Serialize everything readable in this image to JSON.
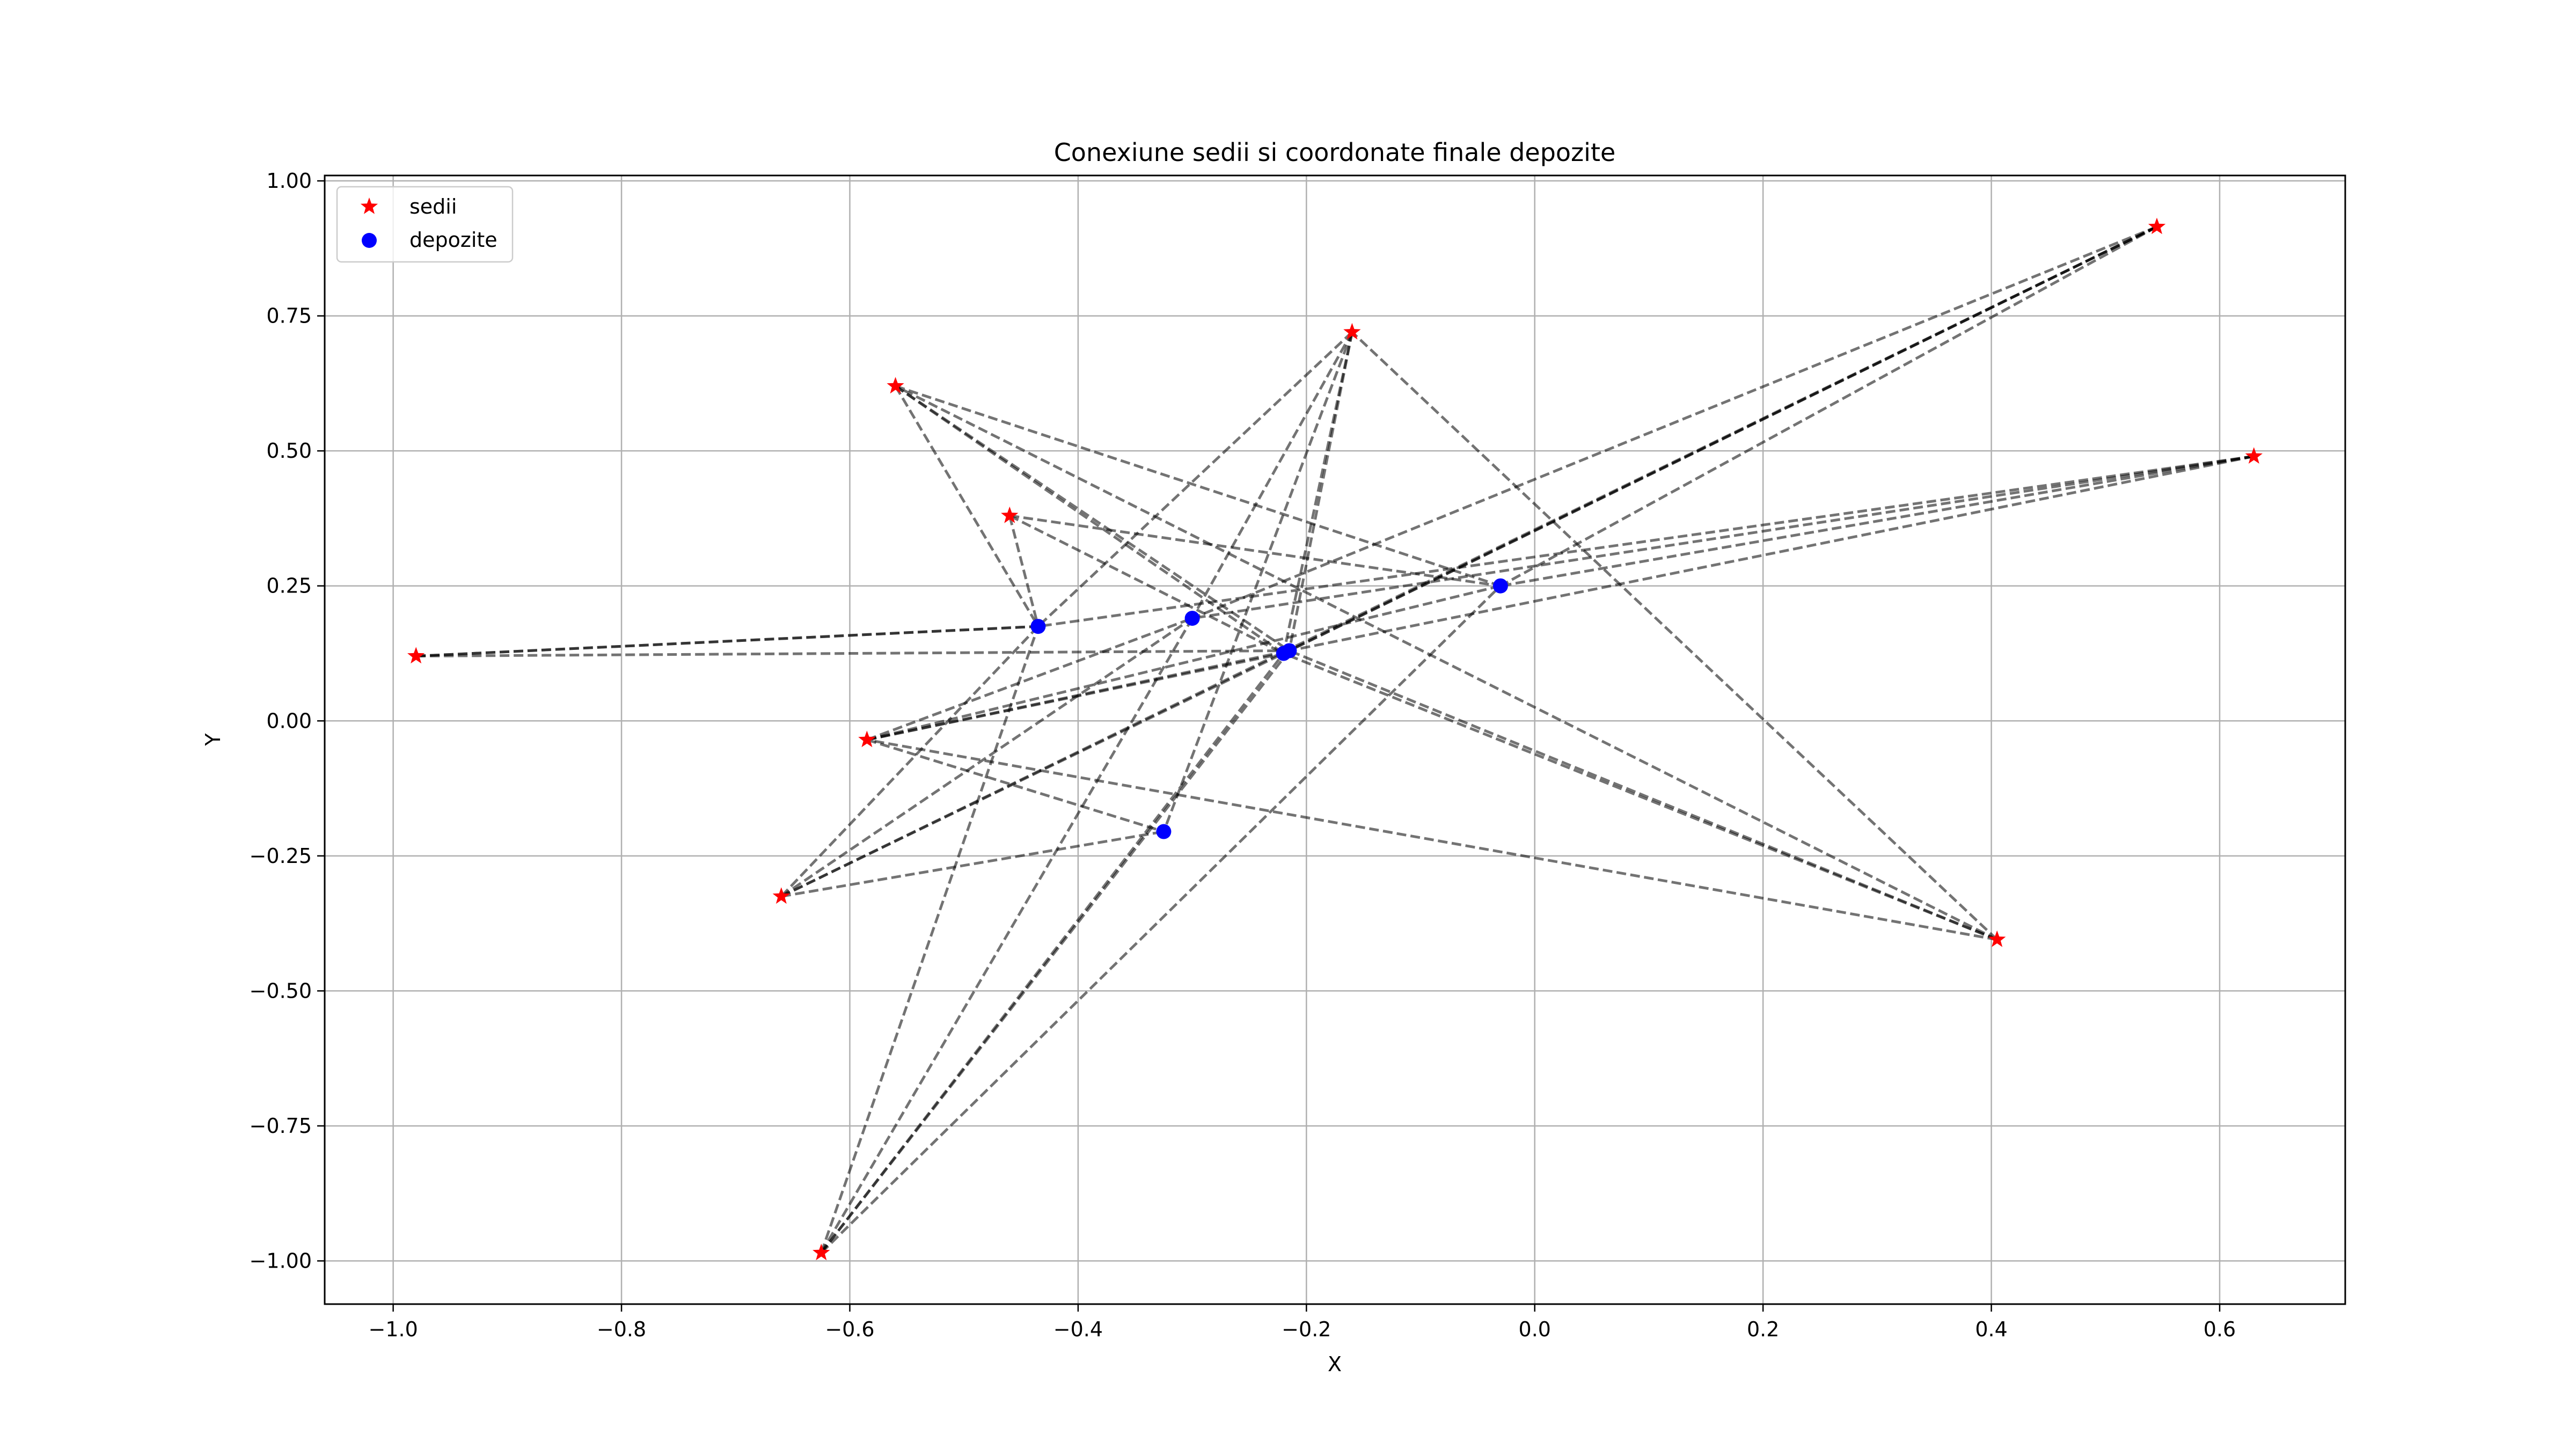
{
  "chart_data": {
    "type": "scatter",
    "title": "Conexiune sedii si coordonate finale depozite",
    "xlabel": "X",
    "ylabel": "Y",
    "xlim": [
      -1.06,
      0.71
    ],
    "ylim": [
      -1.08,
      1.01
    ],
    "xticks": [
      -1.0,
      -0.8,
      -0.6,
      -0.4,
      -0.2,
      0.0,
      0.2,
      0.4,
      0.6
    ],
    "xtick_labels": [
      "−1.0",
      "−0.8",
      "−0.6",
      "−0.4",
      "−0.2",
      "0.0",
      "0.2",
      "0.4",
      "0.6"
    ],
    "yticks": [
      1.0,
      0.75,
      0.5,
      0.25,
      0.0,
      -0.25,
      -0.5,
      -0.75,
      -1.0
    ],
    "ytick_labels": [
      "1.00",
      "0.75",
      "0.50",
      "0.25",
      "0.00",
      "−0.25",
      "−0.50",
      "−0.75",
      "−1.00"
    ],
    "grid": true,
    "legend_position": "top-left",
    "series": [
      {
        "name": "sedii",
        "marker": "star",
        "color": "#ff0000",
        "points": [
          [
            -0.98,
            0.12
          ],
          [
            -0.56,
            0.62
          ],
          [
            -0.46,
            0.38
          ],
          [
            -0.16,
            0.72
          ],
          [
            0.545,
            0.915
          ],
          [
            0.63,
            0.49
          ],
          [
            -0.585,
            -0.035
          ],
          [
            -0.66,
            -0.325
          ],
          [
            -0.625,
            -0.985
          ],
          [
            0.405,
            -0.405
          ]
        ]
      },
      {
        "name": "depozite",
        "marker": "circle",
        "color": "#0000ff",
        "points": [
          [
            -0.435,
            0.175
          ],
          [
            -0.3,
            0.19
          ],
          [
            -0.03,
            0.25
          ],
          [
            -0.22,
            0.125
          ],
          [
            -0.215,
            0.13
          ],
          [
            -0.325,
            -0.205
          ]
        ]
      }
    ],
    "connections": [
      {
        "from": [
          -0.98,
          0.12
        ],
        "to": [
          -0.435,
          0.175
        ]
      },
      {
        "from": [
          -0.98,
          0.12
        ],
        "to": [
          -0.435,
          0.175
        ]
      },
      {
        "from": [
          -0.98,
          0.12
        ],
        "to": [
          -0.215,
          0.13
        ]
      },
      {
        "from": [
          -0.56,
          0.62
        ],
        "to": [
          -0.435,
          0.175
        ]
      },
      {
        "from": [
          -0.56,
          0.62
        ],
        "to": [
          -0.22,
          0.125
        ]
      },
      {
        "from": [
          -0.56,
          0.62
        ],
        "to": [
          -0.215,
          0.13
        ]
      },
      {
        "from": [
          -0.56,
          0.62
        ],
        "to": [
          -0.03,
          0.25
        ]
      },
      {
        "from": [
          -0.46,
          0.38
        ],
        "to": [
          -0.435,
          0.175
        ]
      },
      {
        "from": [
          -0.46,
          0.38
        ],
        "to": [
          -0.03,
          0.25
        ]
      },
      {
        "from": [
          -0.46,
          0.38
        ],
        "to": [
          -0.22,
          0.125
        ]
      },
      {
        "from": [
          -0.16,
          0.72
        ],
        "to": [
          -0.435,
          0.175
        ]
      },
      {
        "from": [
          -0.16,
          0.72
        ],
        "to": [
          -0.3,
          0.19
        ]
      },
      {
        "from": [
          -0.16,
          0.72
        ],
        "to": [
          -0.22,
          0.125
        ]
      },
      {
        "from": [
          -0.16,
          0.72
        ],
        "to": [
          -0.215,
          0.13
        ]
      },
      {
        "from": [
          -0.16,
          0.72
        ],
        "to": [
          -0.325,
          -0.205
        ]
      },
      {
        "from": [
          0.545,
          0.915
        ],
        "to": [
          -0.3,
          0.19
        ]
      },
      {
        "from": [
          0.545,
          0.915
        ],
        "to": [
          -0.215,
          0.13
        ]
      },
      {
        "from": [
          0.545,
          0.915
        ],
        "to": [
          -0.22,
          0.125
        ]
      },
      {
        "from": [
          0.545,
          0.915
        ],
        "to": [
          -0.03,
          0.25
        ]
      },
      {
        "from": [
          0.63,
          0.49
        ],
        "to": [
          -0.435,
          0.175
        ]
      },
      {
        "from": [
          0.63,
          0.49
        ],
        "to": [
          -0.3,
          0.19
        ]
      },
      {
        "from": [
          0.63,
          0.49
        ],
        "to": [
          -0.03,
          0.25
        ]
      },
      {
        "from": [
          0.63,
          0.49
        ],
        "to": [
          -0.215,
          0.13
        ]
      },
      {
        "from": [
          -0.585,
          -0.035
        ],
        "to": [
          -0.3,
          0.19
        ]
      },
      {
        "from": [
          -0.585,
          -0.035
        ],
        "to": [
          -0.215,
          0.13
        ]
      },
      {
        "from": [
          -0.585,
          -0.035
        ],
        "to": [
          -0.22,
          0.125
        ]
      },
      {
        "from": [
          -0.585,
          -0.035
        ],
        "to": [
          -0.03,
          0.25
        ]
      },
      {
        "from": [
          -0.585,
          -0.035
        ],
        "to": [
          -0.325,
          -0.205
        ]
      },
      {
        "from": [
          -0.66,
          -0.325
        ],
        "to": [
          -0.435,
          0.175
        ]
      },
      {
        "from": [
          -0.66,
          -0.325
        ],
        "to": [
          -0.3,
          0.19
        ]
      },
      {
        "from": [
          -0.66,
          -0.325
        ],
        "to": [
          -0.325,
          -0.205
        ]
      },
      {
        "from": [
          -0.66,
          -0.325
        ],
        "to": [
          -0.22,
          0.125
        ]
      },
      {
        "from": [
          -0.66,
          -0.325
        ],
        "to": [
          0.545,
          0.915
        ]
      },
      {
        "from": [
          -0.625,
          -0.985
        ],
        "to": [
          -0.435,
          0.175
        ]
      },
      {
        "from": [
          -0.625,
          -0.985
        ],
        "to": [
          -0.3,
          0.19
        ]
      },
      {
        "from": [
          -0.625,
          -0.985
        ],
        "to": [
          -0.22,
          0.125
        ]
      },
      {
        "from": [
          -0.625,
          -0.985
        ],
        "to": [
          -0.215,
          0.13
        ]
      },
      {
        "from": [
          -0.625,
          -0.985
        ],
        "to": [
          -0.03,
          0.25
        ]
      },
      {
        "from": [
          0.405,
          -0.405
        ],
        "to": [
          -0.56,
          0.62
        ]
      },
      {
        "from": [
          0.405,
          -0.405
        ],
        "to": [
          -0.585,
          -0.035
        ]
      },
      {
        "from": [
          0.405,
          -0.405
        ],
        "to": [
          -0.22,
          0.125
        ]
      },
      {
        "from": [
          0.405,
          -0.405
        ],
        "to": [
          -0.215,
          0.13
        ]
      },
      {
        "from": [
          0.405,
          -0.405
        ],
        "to": [
          -0.16,
          0.72
        ]
      }
    ]
  }
}
